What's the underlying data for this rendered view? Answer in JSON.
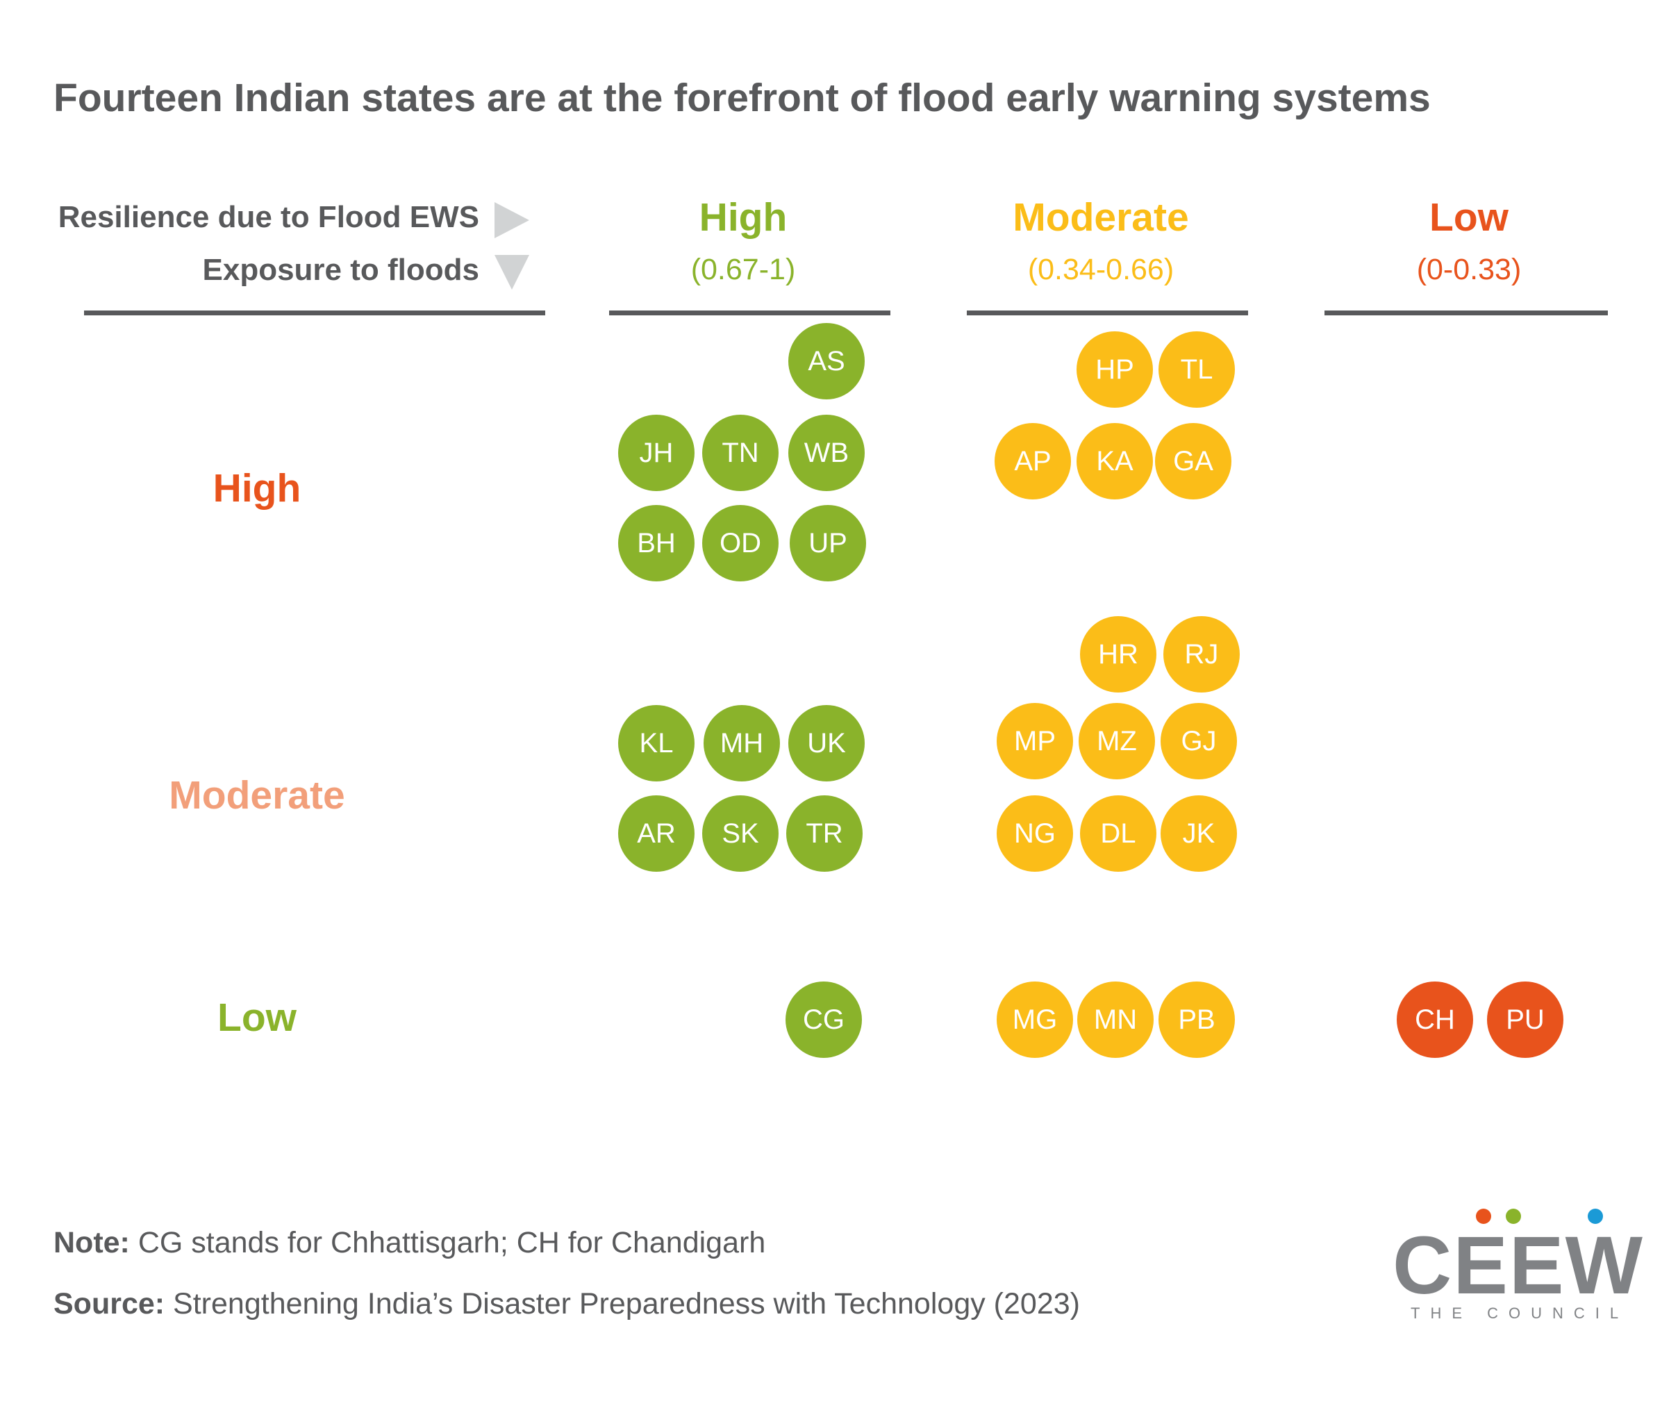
{
  "title": "Fourteen Indian states are at the forefront of flood early warning systems",
  "axes": {
    "columns_label": "Resilience due to Flood EWS",
    "rows_label": "Exposure to floods"
  },
  "columns": [
    {
      "label": "High",
      "range": "(0.67-1)",
      "color": "#8ab32b"
    },
    {
      "label": "Moderate",
      "range": "(0.34-0.66)",
      "color": "#fbbd18"
    },
    {
      "label": "Low",
      "range": "(0-0.33)",
      "color": "#e8531c"
    }
  ],
  "rows": [
    {
      "label": "High",
      "color": "#e8531c"
    },
    {
      "label": "Moderate",
      "color": "#f29f7a"
    },
    {
      "label": "Low",
      "color": "#8ab32b"
    }
  ],
  "cells": {
    "high_high": [
      "AS",
      "JH",
      "TN",
      "WB",
      "BH",
      "OD",
      "UP"
    ],
    "high_moderate": [
      "HP",
      "TL",
      "AP",
      "KA",
      "GA"
    ],
    "high_low": [],
    "moderate_high": [
      "KL",
      "MH",
      "UK",
      "AR",
      "SK",
      "TR"
    ],
    "moderate_moderate": [
      "HR",
      "RJ",
      "MP",
      "MZ",
      "GJ",
      "NG",
      "DL",
      "JK"
    ],
    "moderate_low": [],
    "low_high": [
      "CG"
    ],
    "low_moderate": [
      "MG",
      "MN",
      "PB"
    ],
    "low_low": [
      "CH",
      "PU"
    ]
  },
  "colors": {
    "green": "#8ab32b",
    "yellow": "#fbbd18",
    "orange": "#e8531c"
  },
  "footer": {
    "note_label": "Note:",
    "note_text": " CG stands for Chhattisgarh; CH for Chandigarh",
    "source_label": "Source:",
    "source_text": " Strengthening India’s Disaster Preparedness with Technology (2023)"
  },
  "logo": {
    "name": "CEEW",
    "tagline": "THE COUNCIL",
    "dot_colors": [
      "#e8531c",
      "#8ab32b",
      "#1b9ad6"
    ]
  }
}
